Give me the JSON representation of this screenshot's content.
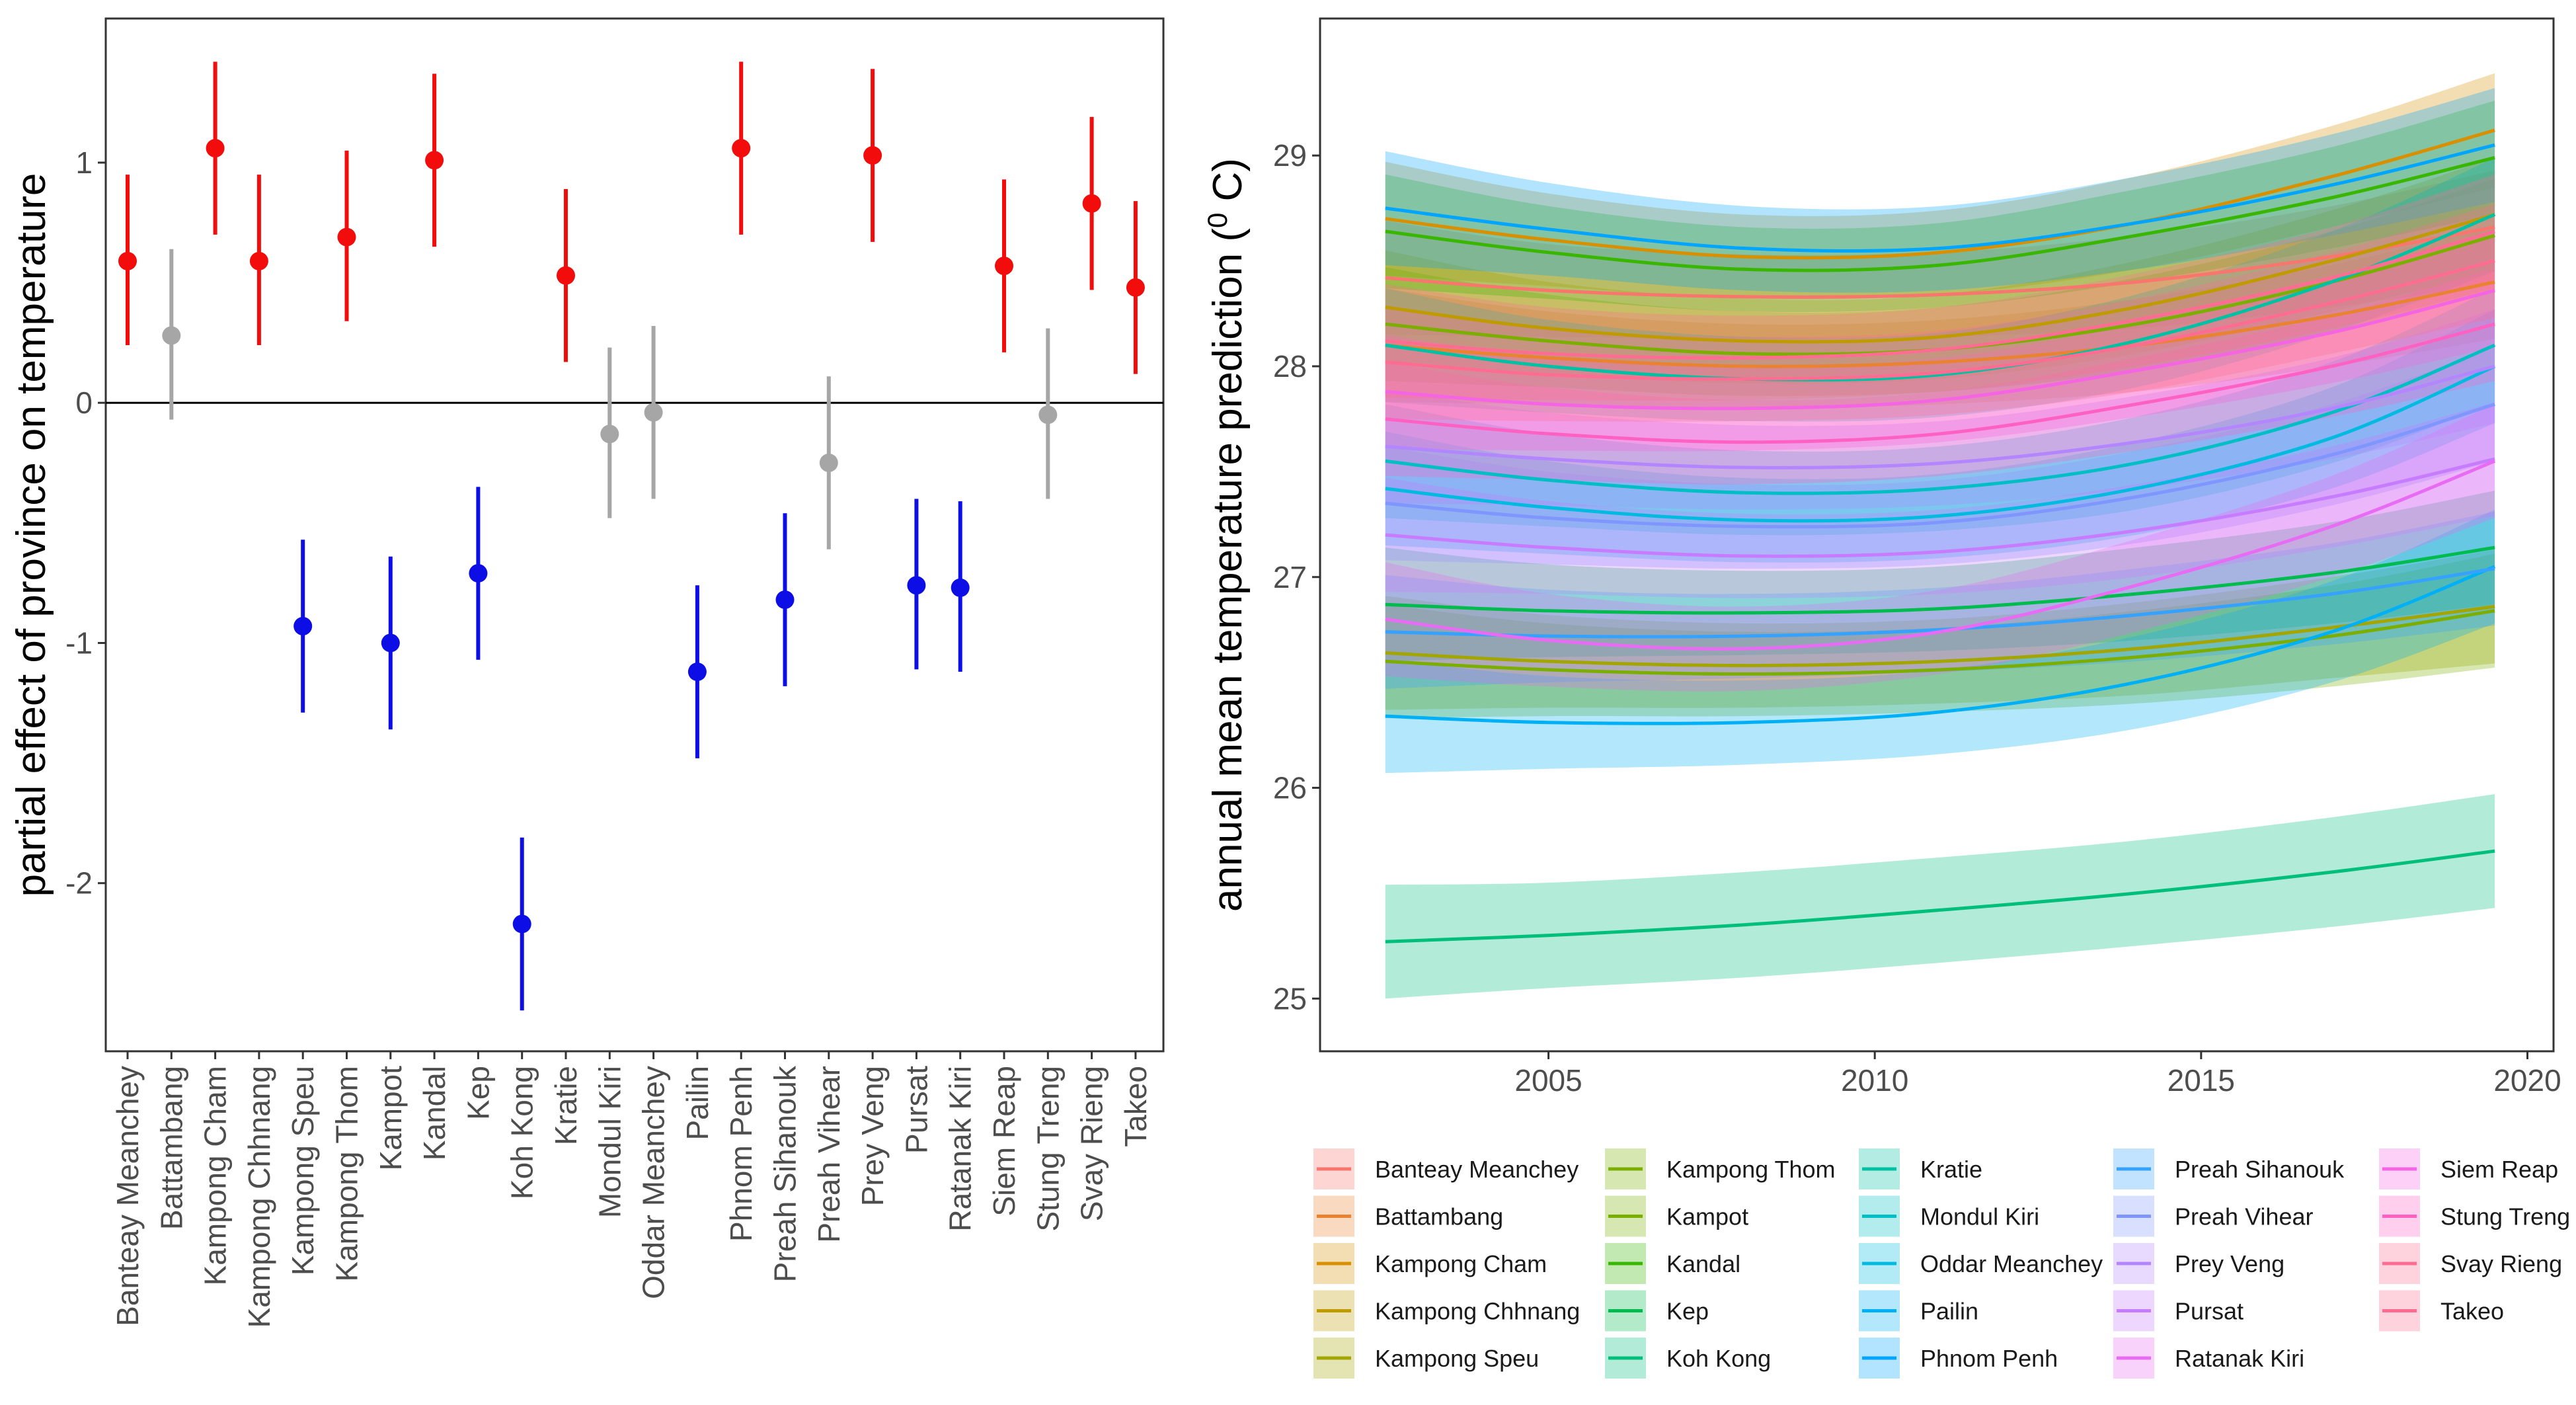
{
  "chart_data": [
    {
      "type": "scatter",
      "ylabel": "partial effect of province on temperature",
      "xlabel": "",
      "ylim": [
        -2.7,
        1.6
      ],
      "yticks": [
        1,
        0,
        -1,
        -2
      ],
      "ytick_labels": [
        "1",
        "0",
        "-1",
        "-2"
      ],
      "reference_line": 0,
      "grid": false,
      "colors": {
        "positive": "#f20c0c",
        "negative": "#0d0de6",
        "nonsignificant": "#a6a6a6"
      },
      "categories": [
        "Banteay Meanchey",
        "Battambang",
        "Kampong Cham",
        "Kampong Chhnang",
        "Kampong Speu",
        "Kampong Thom",
        "Kampot",
        "Kandal",
        "Kep",
        "Koh Kong",
        "Kratie",
        "Mondul Kiri",
        "Oddar Meanchey",
        "Pailin",
        "Phnom Penh",
        "Preah Sihanouk",
        "Preah Vihear",
        "Prey Veng",
        "Pursat",
        "Ratanak Kiri",
        "Siem Reap",
        "Stung Treng",
        "Svay Rieng",
        "Takeo"
      ],
      "estimate": [
        0.59,
        0.28,
        1.06,
        0.59,
        -0.93,
        0.69,
        -1.0,
        1.01,
        -0.71,
        -2.17,
        0.53,
        -0.13,
        -0.04,
        -1.12,
        1.06,
        -0.82,
        -0.25,
        1.03,
        -0.76,
        -0.77,
        0.57,
        -0.05,
        0.83,
        0.48
      ],
      "lower": [
        0.24,
        -0.07,
        0.7,
        0.24,
        -1.29,
        0.34,
        -1.36,
        0.65,
        -1.07,
        -2.53,
        0.17,
        -0.48,
        -0.4,
        -1.48,
        0.7,
        -1.18,
        -0.61,
        0.67,
        -1.11,
        -1.12,
        0.21,
        -0.4,
        0.47,
        0.12
      ],
      "upper": [
        0.95,
        0.64,
        1.42,
        0.95,
        -0.57,
        1.05,
        -0.64,
        1.37,
        -0.35,
        -1.81,
        0.89,
        0.23,
        0.32,
        -0.76,
        1.42,
        -0.46,
        0.11,
        1.39,
        -0.4,
        -0.41,
        0.93,
        0.31,
        1.19,
        0.84
      ],
      "significance": [
        "pos",
        "ns",
        "pos",
        "pos",
        "neg",
        "pos",
        "neg",
        "pos",
        "neg",
        "neg",
        "pos",
        "ns",
        "ns",
        "neg",
        "pos",
        "neg",
        "ns",
        "pos",
        "neg",
        "neg",
        "pos",
        "ns",
        "pos",
        "pos"
      ]
    },
    {
      "type": "line",
      "ylabel": "annual mean temperature prediction (",
      "ylabel_sup": "0",
      "ylabel_tail": " C)",
      "xlabel": "",
      "xlim": [
        2001.5,
        2020.4
      ],
      "ylim": [
        24.75,
        29.65
      ],
      "xticks": [
        2005,
        2010,
        2015,
        2020
      ],
      "xtick_labels": [
        "2005",
        "2010",
        "2015",
        "2020"
      ],
      "yticks": [
        25,
        26,
        27,
        28,
        29
      ],
      "ytick_labels": [
        "25",
        "26",
        "27",
        "28",
        "29"
      ],
      "grid": false,
      "band": "95% interval ribbon per province",
      "legend_position": "bottom",
      "x": [
        2002.5,
        2005,
        2008,
        2011,
        2014,
        2017,
        2019.5
      ],
      "series": [
        {
          "name": "Banteay Meanchey",
          "color": "#F8766D",
          "values": [
            28.42,
            28.36,
            28.33,
            28.34,
            28.4,
            28.52,
            28.66
          ],
          "band": [
            0.27,
            0.22,
            0.2,
            0.2,
            0.22,
            0.24,
            0.27
          ]
        },
        {
          "name": "Battambang",
          "color": "#EA8331",
          "values": [
            28.1,
            28.04,
            28.0,
            28.02,
            28.1,
            28.24,
            28.4
          ],
          "band": [
            0.27,
            0.22,
            0.2,
            0.2,
            0.22,
            0.24,
            0.27
          ]
        },
        {
          "name": "Kampong Cham",
          "color": "#D89000",
          "values": [
            28.7,
            28.6,
            28.52,
            28.54,
            28.68,
            28.9,
            29.12
          ],
          "band": [
            0.27,
            0.22,
            0.2,
            0.2,
            0.22,
            0.24,
            0.27
          ]
        },
        {
          "name": "Kampong Chhnang",
          "color": "#C09B00",
          "values": [
            28.28,
            28.18,
            28.12,
            28.14,
            28.28,
            28.5,
            28.72
          ],
          "band": [
            0.27,
            0.22,
            0.2,
            0.2,
            0.22,
            0.24,
            0.27
          ]
        },
        {
          "name": "Kampong Speu",
          "color": "#A3A500",
          "values": [
            26.64,
            26.6,
            26.58,
            26.6,
            26.66,
            26.76,
            26.86
          ],
          "band": [
            0.27,
            0.22,
            0.2,
            0.2,
            0.22,
            0.24,
            0.27
          ]
        },
        {
          "name": "Kampong Thom",
          "color": "#7CAE00",
          "values": [
            28.2,
            28.12,
            28.06,
            28.08,
            28.2,
            28.4,
            28.62
          ],
          "band": [
            0.27,
            0.22,
            0.2,
            0.2,
            0.22,
            0.24,
            0.27
          ]
        },
        {
          "name": "Kampot",
          "color": "#7CAE00",
          "values": [
            26.6,
            26.56,
            26.54,
            26.56,
            26.62,
            26.72,
            26.84
          ],
          "band": [
            0.27,
            0.22,
            0.2,
            0.2,
            0.22,
            0.24,
            0.27
          ]
        },
        {
          "name": "Kandal",
          "color": "#39B600",
          "values": [
            28.64,
            28.54,
            28.46,
            28.48,
            28.62,
            28.8,
            28.99
          ],
          "band": [
            0.27,
            0.22,
            0.2,
            0.2,
            0.22,
            0.24,
            0.27
          ]
        },
        {
          "name": "Kep",
          "color": "#00BB4E",
          "values": [
            26.87,
            26.84,
            26.83,
            26.85,
            26.92,
            27.02,
            27.14
          ],
          "band": [
            0.27,
            0.22,
            0.2,
            0.2,
            0.22,
            0.24,
            0.27
          ]
        },
        {
          "name": "Koh Kong",
          "color": "#00BF7D",
          "values": [
            25.27,
            25.3,
            25.35,
            25.42,
            25.5,
            25.6,
            25.7
          ],
          "band": [
            0.27,
            0.25,
            0.25,
            0.25,
            0.25,
            0.26,
            0.27
          ]
        },
        {
          "name": "Kratie",
          "color": "#00C1A3",
          "values": [
            28.1,
            28.0,
            27.94,
            27.96,
            28.12,
            28.4,
            28.72
          ],
          "band": [
            0.27,
            0.22,
            0.2,
            0.2,
            0.22,
            0.24,
            0.27
          ]
        },
        {
          "name": "Mondul Kiri",
          "color": "#00BFC4",
          "values": [
            27.55,
            27.46,
            27.4,
            27.42,
            27.54,
            27.78,
            28.1
          ],
          "band": [
            0.27,
            0.22,
            0.2,
            0.2,
            0.22,
            0.24,
            0.27
          ]
        },
        {
          "name": "Oddar Meanchey",
          "color": "#00BAE0",
          "values": [
            27.42,
            27.33,
            27.27,
            27.29,
            27.42,
            27.66,
            28.0
          ],
          "band": [
            0.27,
            0.22,
            0.2,
            0.2,
            0.22,
            0.24,
            0.27
          ]
        },
        {
          "name": "Pailin",
          "color": "#00B0F6",
          "values": [
            26.34,
            26.31,
            26.31,
            26.36,
            26.5,
            26.74,
            27.05
          ],
          "band": [
            0.27,
            0.22,
            0.2,
            0.2,
            0.22,
            0.24,
            0.27
          ]
        },
        {
          "name": "Phnom Penh",
          "color": "#00A5FF",
          "values": [
            28.75,
            28.65,
            28.56,
            28.56,
            28.68,
            28.86,
            29.05
          ],
          "band": [
            0.27,
            0.22,
            0.2,
            0.2,
            0.22,
            0.24,
            0.27
          ]
        },
        {
          "name": "Preah Sihanouk",
          "color": "#35A2FF",
          "values": [
            26.74,
            26.72,
            26.72,
            26.75,
            26.82,
            26.92,
            27.04
          ],
          "band": [
            0.27,
            0.22,
            0.2,
            0.2,
            0.22,
            0.24,
            0.27
          ]
        },
        {
          "name": "Preah Vihear",
          "color": "#7F96FF",
          "values": [
            27.35,
            27.28,
            27.24,
            27.26,
            27.38,
            27.58,
            27.82
          ],
          "band": [
            0.27,
            0.22,
            0.2,
            0.2,
            0.22,
            0.24,
            0.27
          ]
        },
        {
          "name": "Prey Veng",
          "color": "#B385FF",
          "values": [
            27.62,
            27.56,
            27.52,
            27.54,
            27.64,
            27.8,
            28.0
          ],
          "band": [
            0.27,
            0.22,
            0.2,
            0.2,
            0.22,
            0.24,
            0.27
          ]
        },
        {
          "name": "Pursat",
          "color": "#C77CFF",
          "values": [
            27.2,
            27.14,
            27.1,
            27.12,
            27.22,
            27.38,
            27.56
          ],
          "band": [
            0.27,
            0.22,
            0.2,
            0.2,
            0.22,
            0.24,
            0.27
          ]
        },
        {
          "name": "Ratanak Kiri",
          "color": "#E76BF3",
          "values": [
            26.8,
            26.7,
            26.66,
            26.74,
            26.96,
            27.24,
            27.55
          ],
          "band": [
            0.27,
            0.22,
            0.2,
            0.2,
            0.22,
            0.24,
            0.27
          ]
        },
        {
          "name": "Siem Reap",
          "color": "#F564E3",
          "values": [
            27.88,
            27.82,
            27.8,
            27.84,
            27.98,
            28.16,
            28.36
          ],
          "band": [
            0.27,
            0.22,
            0.2,
            0.2,
            0.22,
            0.24,
            0.27
          ]
        },
        {
          "name": "Stung Treng",
          "color": "#FF61C3",
          "values": [
            27.75,
            27.68,
            27.64,
            27.68,
            27.82,
            28.0,
            28.2
          ],
          "band": [
            0.27,
            0.22,
            0.2,
            0.2,
            0.22,
            0.24,
            0.27
          ]
        },
        {
          "name": "Svay Rieng",
          "color": "#FF6C91",
          "values": [
            28.12,
            28.06,
            28.04,
            28.08,
            28.22,
            28.42,
            28.64
          ],
          "band": [
            0.27,
            0.22,
            0.2,
            0.2,
            0.22,
            0.24,
            0.27
          ]
        },
        {
          "name": "Takeo",
          "color": "#FF6C91",
          "values": [
            28.02,
            27.96,
            27.94,
            27.97,
            28.1,
            28.3,
            28.5
          ],
          "band": [
            0.27,
            0.22,
            0.2,
            0.2,
            0.22,
            0.24,
            0.27
          ]
        }
      ]
    }
  ]
}
